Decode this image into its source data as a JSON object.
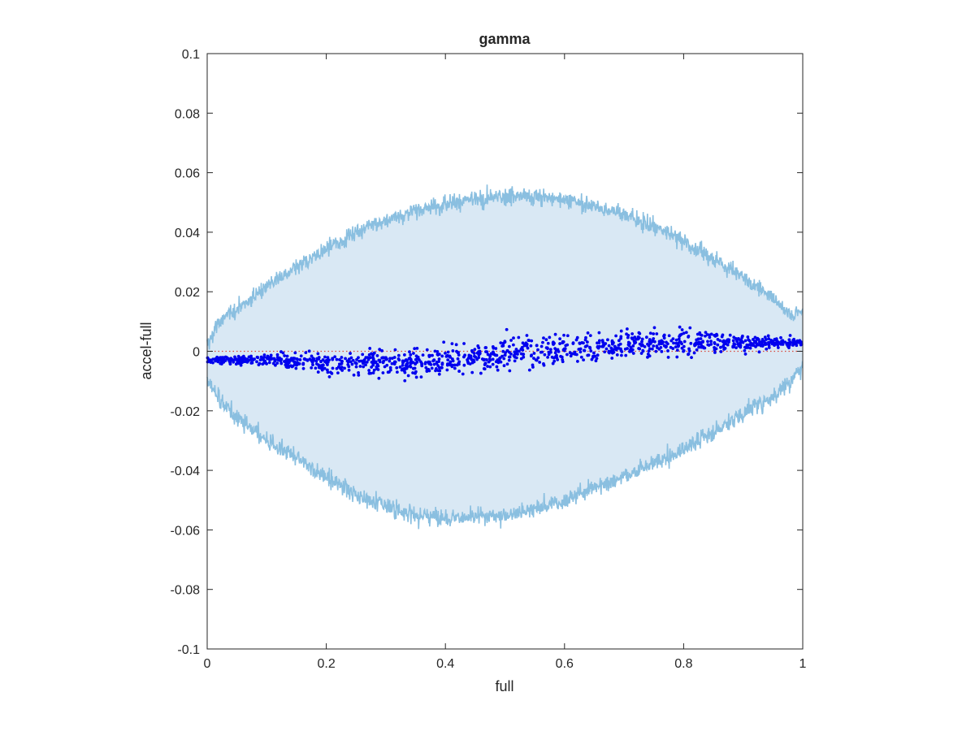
{
  "chart_data": {
    "type": "scatter",
    "title": "gamma",
    "xlabel": "full",
    "ylabel": "accel-full",
    "xlim": [
      0,
      1
    ],
    "ylim": [
      -0.1,
      0.1
    ],
    "xticks": [
      0,
      0.2,
      0.4,
      0.6,
      0.8,
      1
    ],
    "xtick_labels": [
      "0",
      "0.2",
      "0.4",
      "0.6",
      "0.8",
      "1"
    ],
    "yticks": [
      -0.1,
      -0.08,
      -0.06,
      -0.04,
      -0.02,
      0,
      0.02,
      0.04,
      0.06,
      0.08,
      0.1
    ],
    "ytick_labels": [
      "-0.1",
      "-0.08",
      "-0.06",
      "-0.04",
      "-0.02",
      "0",
      "0.02",
      "0.04",
      "0.06",
      "0.08",
      "0.1"
    ],
    "grid": false,
    "box": true,
    "band": {
      "fill_color": "#d9e8f4",
      "line_color": "#8abfe0",
      "upper_envelope": {
        "x": [
          0,
          0.02,
          0.05,
          0.1,
          0.15,
          0.2,
          0.25,
          0.3,
          0.35,
          0.4,
          0.45,
          0.5,
          0.55,
          0.6,
          0.65,
          0.7,
          0.75,
          0.8,
          0.85,
          0.9,
          0.95,
          0.98,
          1
        ],
        "y": [
          0.002,
          0.01,
          0.014,
          0.022,
          0.028,
          0.034,
          0.04,
          0.044,
          0.047,
          0.05,
          0.051,
          0.052,
          0.052,
          0.051,
          0.049,
          0.046,
          0.042,
          0.037,
          0.031,
          0.025,
          0.018,
          0.012,
          0.014
        ]
      },
      "lower_envelope": {
        "x": [
          0,
          0.02,
          0.05,
          0.1,
          0.15,
          0.2,
          0.25,
          0.3,
          0.35,
          0.4,
          0.45,
          0.5,
          0.55,
          0.6,
          0.65,
          0.7,
          0.75,
          0.8,
          0.85,
          0.9,
          0.95,
          0.98,
          1
        ],
        "y": [
          -0.01,
          -0.016,
          -0.022,
          -0.03,
          -0.036,
          -0.042,
          -0.048,
          -0.052,
          -0.055,
          -0.056,
          -0.056,
          -0.055,
          -0.053,
          -0.05,
          -0.046,
          -0.042,
          -0.038,
          -0.033,
          -0.027,
          -0.021,
          -0.015,
          -0.01,
          -0.005
        ]
      },
      "noise_amplitude": 0.0055
    },
    "reference_line": {
      "y": 0,
      "color": "#d9453a",
      "style": "dotted"
    },
    "points": {
      "color": "#0000ee",
      "count": 1200,
      "trend": {
        "x": [
          0,
          0.1,
          0.2,
          0.3,
          0.4,
          0.5,
          0.6,
          0.7,
          0.8,
          0.9,
          1
        ],
        "y": [
          -0.003,
          -0.003,
          -0.004,
          -0.004,
          -0.003,
          -0.001,
          0.001,
          0.002,
          0.003,
          0.003,
          0.003
        ]
      },
      "spread": {
        "x": [
          0,
          0.1,
          0.2,
          0.3,
          0.4,
          0.5,
          0.6,
          0.7,
          0.8,
          0.9,
          1
        ],
        "y": [
          0.001,
          0.002,
          0.004,
          0.005,
          0.0055,
          0.0058,
          0.0058,
          0.0055,
          0.0045,
          0.003,
          0.0015
        ]
      }
    },
    "colors": {
      "axis": "#262626",
      "background": "#ffffff"
    }
  }
}
